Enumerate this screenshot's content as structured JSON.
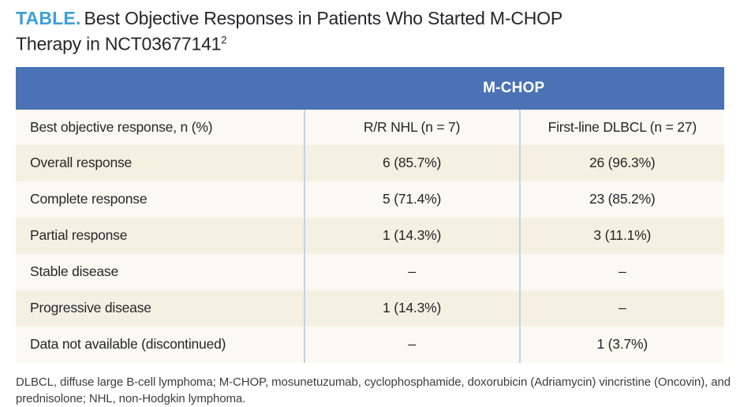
{
  "title": {
    "tag": "TABLE.",
    "text": "Best Objective Responses in Patients Who Started M-CHOP Therapy in NCT03677141",
    "reference": "2"
  },
  "table": {
    "group_header": "M-CHOP",
    "columns": {
      "response": "Best objective response, n (%)",
      "rr_nhl": "R/R NHL (n = 7)",
      "first_line_dlbcl": "First-line DLBCL (n = 27)"
    },
    "rows": [
      {
        "label": "Overall response",
        "rr_nhl": "6 (85.7%)",
        "first_line_dlbcl": "26 (96.3%)"
      },
      {
        "label": "Complete response",
        "rr_nhl": "5 (71.4%)",
        "first_line_dlbcl": "23 (85.2%)"
      },
      {
        "label": "Partial response",
        "rr_nhl": "1 (14.3%)",
        "first_line_dlbcl": "3 (11.1%)"
      },
      {
        "label": "Stable disease",
        "rr_nhl": "–",
        "first_line_dlbcl": "–"
      },
      {
        "label": "Progressive disease",
        "rr_nhl": "1 (14.3%)",
        "first_line_dlbcl": "–"
      },
      {
        "label": "Data not available (discontinued)",
        "rr_nhl": "–",
        "first_line_dlbcl": "1 (3.7%)"
      }
    ]
  },
  "footnote": "DLBCL, diffuse large B-cell lymphoma; M-CHOP, mosunetuzumab, cyclophosphamide, doxorubicin (Adriamycin) vincristine (Oncovin), and prednisolone; NHL, non-Hodgkin lymphoma.",
  "colors": {
    "title_accent": "#3ba0d9",
    "header_blue": "#4a72b5",
    "row_cream": "#f5f0e1",
    "row_white": "#fbf9f1",
    "divider_blue": "#b7d6ec",
    "text": "#26262a"
  }
}
